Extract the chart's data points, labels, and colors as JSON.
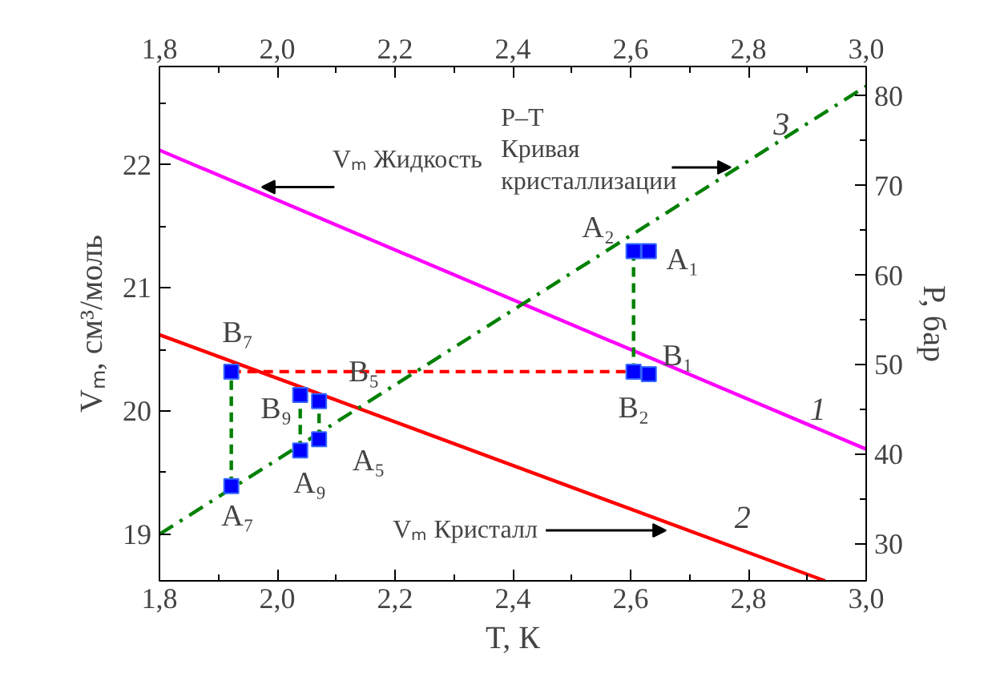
{
  "chart_data": {
    "type": "line",
    "xlabel": "T, К",
    "ylabel": "Vₘ, см³/моль",
    "y2label": "P, бар",
    "xlim": [
      1.8,
      3.0
    ],
    "xticks": [
      {
        "value": 1.8,
        "label": "1,8"
      },
      {
        "value": 2.0,
        "label": "2,0"
      },
      {
        "value": 2.2,
        "label": "2,2"
      },
      {
        "value": 2.4,
        "label": "2,4"
      },
      {
        "value": 2.6,
        "label": "2,6"
      },
      {
        "value": 2.8,
        "label": "2,8"
      },
      {
        "value": 3.0,
        "label": "3,0"
      }
    ],
    "x2lim": [
      1.8,
      3.0
    ],
    "x2ticks": [
      {
        "value": 1.8,
        "label": "1,8"
      },
      {
        "value": 2.0,
        "label": "2,0"
      },
      {
        "value": 2.2,
        "label": "2,2"
      },
      {
        "value": 2.4,
        "label": "2,4"
      },
      {
        "value": 2.6,
        "label": "2,6"
      },
      {
        "value": 2.8,
        "label": "2,8"
      },
      {
        "value": 3.0,
        "label": "3,0"
      }
    ],
    "ylim": [
      18.62,
      22.8
    ],
    "yticks": [
      19,
      20,
      21,
      22
    ],
    "y2lim": [
      25.9,
      83.3
    ],
    "y2ticks": [
      30,
      40,
      50,
      60,
      70,
      80
    ],
    "grid": false,
    "series": [
      {
        "color": "#ff00ff",
        "x": [
          1.8,
          3.0
        ],
        "values": [
          22.12,
          19.69
        ],
        "line_style": "solid"
      },
      {
        "color": "#ff0000",
        "x": [
          1.8,
          2.93
        ],
        "values": [
          20.62,
          18.62
        ],
        "line_style": "solid"
      },
      {
        "color": "#008000",
        "axis": "y2",
        "x": [
          1.8,
          3.0
        ],
        "values": [
          31.1,
          81.1
        ],
        "line_style": "dashdot"
      },
      {
        "color": "#ff0000",
        "x": [
          1.922,
          2.605
        ],
        "values": [
          20.32,
          20.32
        ],
        "line_style": "dashed"
      },
      {
        "color": "#008000",
        "x": [
          1.922,
          1.922
        ],
        "values": [
          19.39,
          20.32
        ],
        "line_style": "dashed"
      },
      {
        "color": "#008000",
        "x": [
          2.039,
          2.039
        ],
        "values": [
          19.68,
          20.13
        ],
        "line_style": "dashed"
      },
      {
        "color": "#008000",
        "x": [
          2.071,
          2.071
        ],
        "values": [
          19.77,
          20.08
        ],
        "line_style": "dashed"
      },
      {
        "color": "#008000",
        "x": [
          2.605,
          2.605
        ],
        "values": [
          21.3,
          20.32
        ],
        "line_style": "dashed"
      },
      {
        "type": "scatter",
        "color": "#0000ff",
        "marker": "square",
        "x": [
          1.922,
          1.922,
          2.039,
          2.039,
          2.071,
          2.071,
          2.605,
          2.631,
          2.631,
          2.605
        ],
        "values": [
          20.32,
          19.39,
          20.13,
          19.68,
          20.08,
          19.77,
          21.3,
          21.3,
          20.3,
          20.32
        ]
      }
    ],
    "annotations": [
      {
        "text": "Vₘ Жидкость",
        "x": 1.974,
        "y": 21.82
      },
      {
        "text": "P–T\nКривая\nкристаллизации",
        "x": 2.77,
        "y": 21.98
      },
      {
        "text": "Vₘ Кристалл",
        "x": 2.66,
        "y": 19.03
      },
      "1",
      "2",
      "3",
      {
        "text": "B₇",
        "x": 1.922,
        "y": 20.32
      },
      {
        "text": "A₇",
        "x": 1.922,
        "y": 19.39
      },
      {
        "text": "B₉",
        "x": 2.039,
        "y": 20.13
      },
      {
        "text": "A₉",
        "x": 2.039,
        "y": 19.68
      },
      {
        "text": "B₅",
        "x": 2.071,
        "y": 20.08
      },
      {
        "text": "A₅",
        "x": 2.071,
        "y": 19.77
      },
      {
        "text": "A₂",
        "x": 2.605,
        "y": 21.3
      },
      {
        "text": "A₁",
        "x": 2.631,
        "y": 21.3
      },
      {
        "text": "B₁",
        "x": 2.631,
        "y": 20.3
      },
      {
        "text": "B₂",
        "x": 2.605,
        "y": 20.32
      }
    ]
  }
}
